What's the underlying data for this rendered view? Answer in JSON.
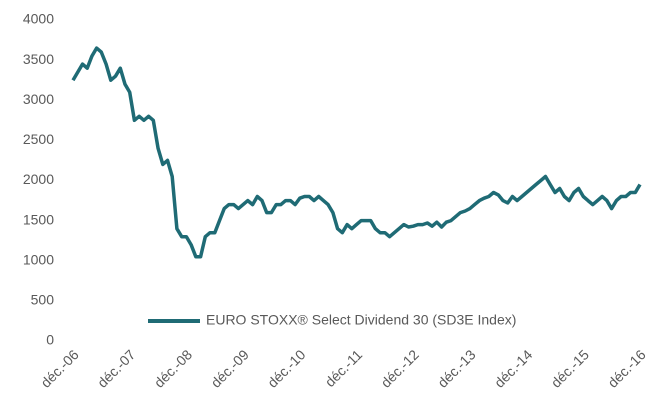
{
  "chart_data": {
    "type": "line",
    "categories": [
      "déc.-06",
      null,
      null,
      null,
      null,
      null,
      null,
      null,
      null,
      null,
      null,
      null,
      "déc.-07",
      null,
      null,
      null,
      null,
      null,
      null,
      null,
      null,
      null,
      null,
      null,
      "déc.-08",
      null,
      null,
      null,
      null,
      null,
      null,
      null,
      null,
      null,
      null,
      null,
      "déc.-09",
      null,
      null,
      null,
      null,
      null,
      null,
      null,
      null,
      null,
      null,
      null,
      "déc.-10",
      null,
      null,
      null,
      null,
      null,
      null,
      null,
      null,
      null,
      null,
      null,
      "déc.-11",
      null,
      null,
      null,
      null,
      null,
      null,
      null,
      null,
      null,
      null,
      null,
      "déc.-12",
      null,
      null,
      null,
      null,
      null,
      null,
      null,
      null,
      null,
      null,
      null,
      "déc.-13",
      null,
      null,
      null,
      null,
      null,
      null,
      null,
      null,
      null,
      null,
      null,
      "déc.-14",
      null,
      null,
      null,
      null,
      null,
      null,
      null,
      null,
      null,
      null,
      null,
      "déc.-15",
      null,
      null,
      null,
      null,
      null,
      null,
      null,
      null,
      null,
      null,
      null,
      "déc.-16"
    ],
    "series": [
      {
        "name": "EURO STOXX® Select Dividend 30 (SD3E Index)",
        "color": "#1f6b75",
        "values": [
          3250,
          3350,
          3450,
          3400,
          3550,
          3650,
          3600,
          3450,
          3250,
          3300,
          3400,
          3200,
          3100,
          2750,
          2800,
          2750,
          2800,
          2750,
          2400,
          2200,
          2250,
          2050,
          1400,
          1300,
          1300,
          1200,
          1050,
          1050,
          1300,
          1350,
          1350,
          1500,
          1650,
          1700,
          1700,
          1650,
          1700,
          1750,
          1700,
          1800,
          1750,
          1600,
          1600,
          1700,
          1700,
          1750,
          1750,
          1700,
          1780,
          1800,
          1800,
          1750,
          1800,
          1750,
          1700,
          1600,
          1400,
          1350,
          1450,
          1400,
          1450,
          1500,
          1500,
          1500,
          1400,
          1350,
          1350,
          1300,
          1350,
          1400,
          1450,
          1420,
          1430,
          1450,
          1450,
          1470,
          1430,
          1480,
          1420,
          1480,
          1500,
          1550,
          1600,
          1620,
          1650,
          1700,
          1750,
          1780,
          1800,
          1850,
          1820,
          1750,
          1720,
          1800,
          1750,
          1800,
          1850,
          1900,
          1950,
          2000,
          2050,
          1950,
          1850,
          1900,
          1800,
          1750,
          1850,
          1900,
          1800,
          1750,
          1700,
          1750,
          1800,
          1750,
          1650,
          1750,
          1800,
          1800,
          1850,
          1850,
          1950
        ]
      }
    ],
    "ylim": [
      0,
      4000
    ],
    "yticks": [
      0,
      500,
      1000,
      1500,
      2000,
      2500,
      3000,
      3500,
      4000
    ],
    "grid": false,
    "legend": "bottom"
  }
}
